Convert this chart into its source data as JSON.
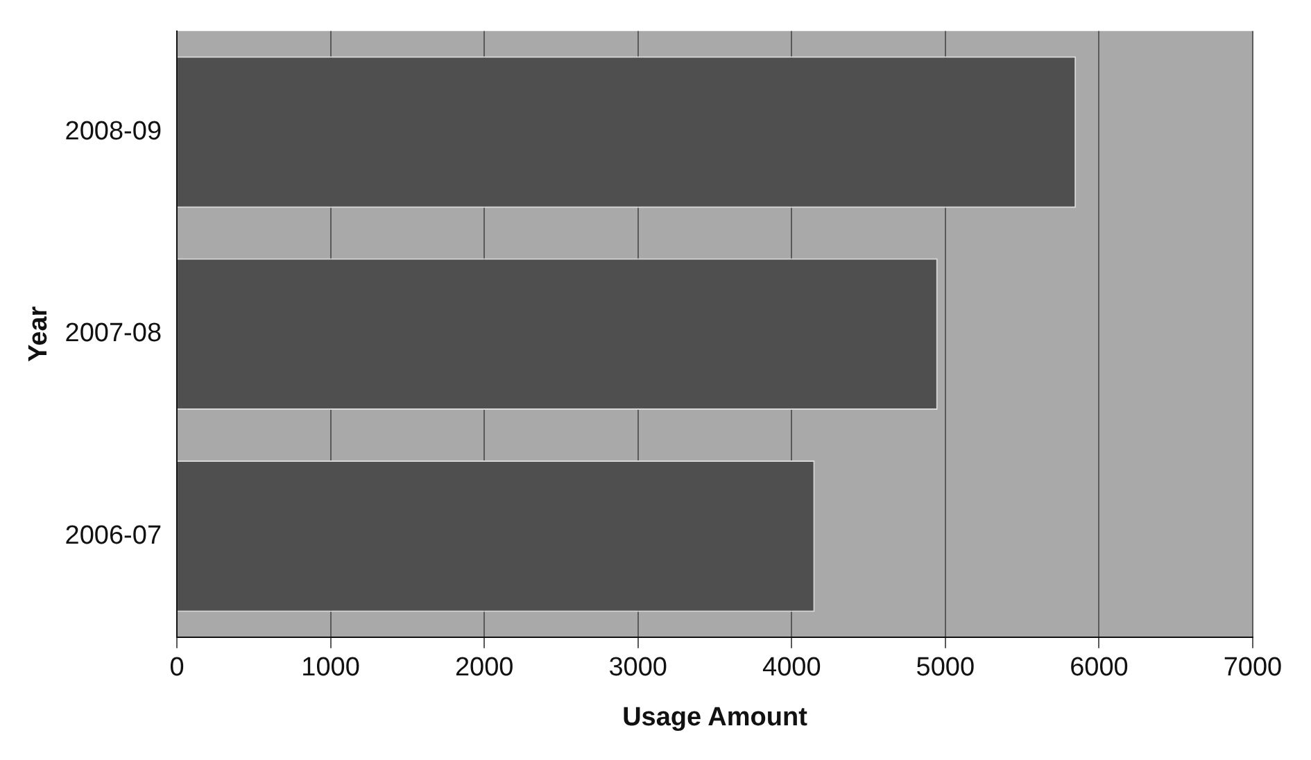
{
  "chart_data": {
    "type": "bar",
    "orientation": "horizontal",
    "xlabel": "Usage Amount",
    "ylabel": "Year",
    "categories": [
      "2008-09",
      "2007-08",
      "2006-07"
    ],
    "values": [
      5850,
      4950,
      4150
    ],
    "color": "#4f4f4f",
    "xlim": [
      0,
      7000
    ],
    "xticks": [
      0,
      1000,
      2000,
      3000,
      4000,
      5000,
      6000,
      7000
    ],
    "grid": "x",
    "legend": false
  }
}
